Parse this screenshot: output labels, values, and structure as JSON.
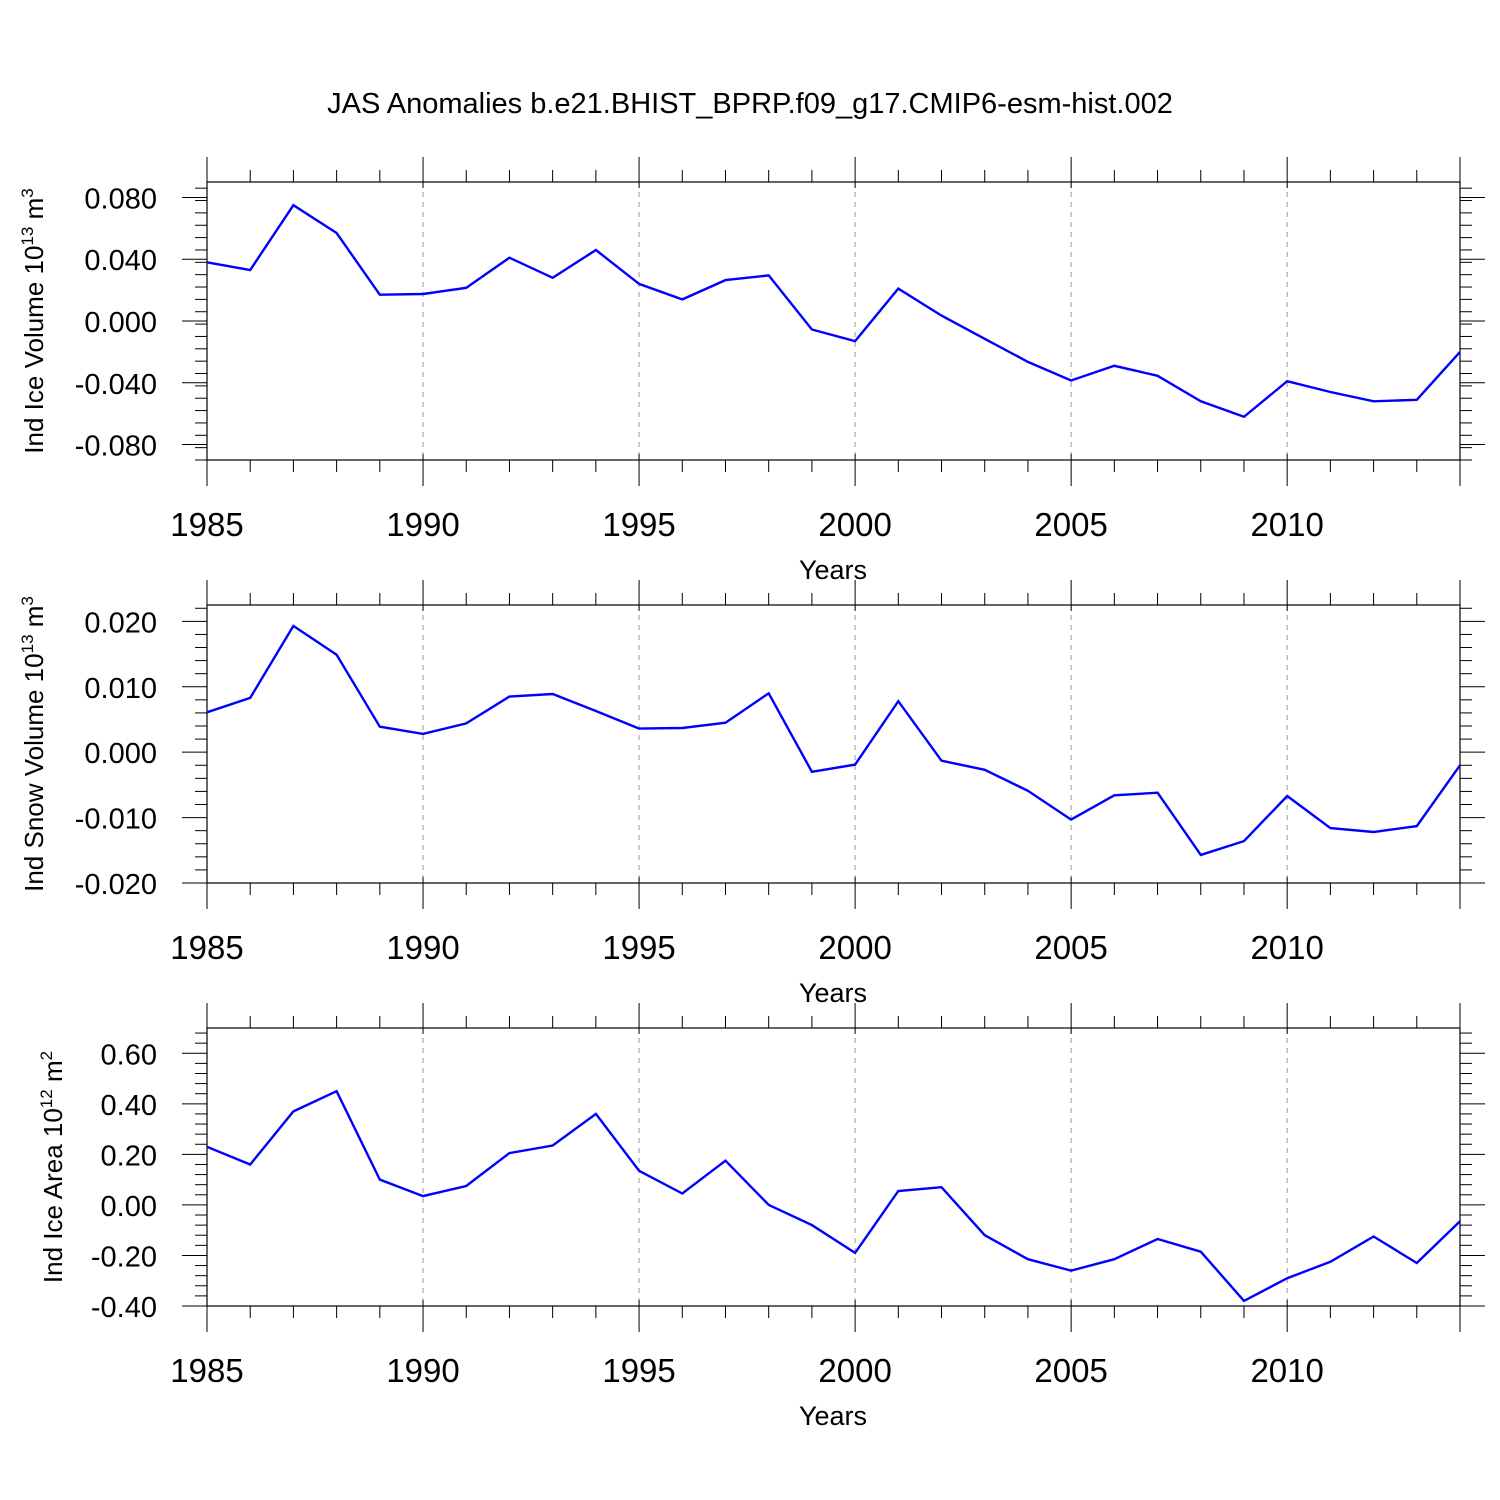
{
  "title": "JAS Anomalies b.e21.BHIST_BPRP.f09_g17.CMIP6-esm-hist.002",
  "colors": {
    "line": "#0000ff",
    "axis": "#000000",
    "grid": "#999999"
  },
  "chart_data": [
    {
      "type": "line",
      "title": "",
      "xlabel": "Years",
      "ylabel": {
        "text": "Ind Ice Volume 10",
        "sup": "13",
        "unit": " m",
        "unit_sup": "3"
      },
      "xlim": [
        1985,
        2014
      ],
      "ylim": [
        -0.09,
        0.09
      ],
      "xticks": [
        1985,
        1990,
        1995,
        2000,
        2005,
        2010
      ],
      "xtick_labels": [
        "1985",
        "1990",
        "1995",
        "2000",
        "2005",
        "2010"
      ],
      "yticks": [
        0.08,
        0.04,
        0.0,
        -0.04,
        -0.08
      ],
      "ytick_labels": [
        "0.080",
        "0.040",
        "0.000",
        "-0.040",
        "-0.080"
      ],
      "grid": "vertical dashed at major x ticks",
      "series": [
        {
          "x": [
            1985,
            1986,
            1987,
            1988,
            1989,
            1990,
            1991,
            1992,
            1993,
            1994,
            1995,
            1996,
            1997,
            1998,
            1999,
            2000,
            2001,
            2002,
            2003,
            2004,
            2005,
            2006,
            2007,
            2008,
            2009,
            2010,
            2011,
            2012,
            2013,
            2014
          ],
          "values": [
            0.038,
            0.033,
            0.075,
            0.057,
            0.017,
            0.0175,
            0.0215,
            0.041,
            0.028,
            0.046,
            0.024,
            0.014,
            0.0265,
            0.0295,
            -0.0055,
            -0.013,
            0.021,
            0.0035,
            -0.0115,
            -0.0265,
            -0.0385,
            -0.029,
            -0.0355,
            -0.052,
            -0.062,
            -0.039,
            -0.046,
            -0.052,
            -0.051,
            -0.02
          ]
        }
      ]
    },
    {
      "type": "line",
      "title": "",
      "xlabel": "Years",
      "ylabel": {
        "text": "Ind Snow Volume 10",
        "sup": "13",
        "unit": " m",
        "unit_sup": "3"
      },
      "xlim": [
        1985,
        2014
      ],
      "ylim": [
        -0.02,
        0.0225
      ],
      "xticks": [
        1985,
        1990,
        1995,
        2000,
        2005,
        2010
      ],
      "xtick_labels": [
        "1985",
        "1990",
        "1995",
        "2000",
        "2005",
        "2010"
      ],
      "yticks": [
        0.02,
        0.01,
        0.0,
        -0.01,
        -0.02
      ],
      "ytick_labels": [
        "0.020",
        "0.010",
        "0.000",
        "-0.010",
        "-0.020"
      ],
      "grid": "vertical dashed at major x ticks",
      "series": [
        {
          "x": [
            1985,
            1986,
            1987,
            1988,
            1989,
            1990,
            1991,
            1992,
            1993,
            1994,
            1995,
            1996,
            1997,
            1998,
            1999,
            2000,
            2001,
            2002,
            2003,
            2004,
            2005,
            2006,
            2007,
            2008,
            2009,
            2010,
            2011,
            2012,
            2013,
            2014
          ],
          "values": [
            0.0061,
            0.0083,
            0.0193,
            0.0149,
            0.0039,
            0.0028,
            0.0044,
            0.0085,
            0.0089,
            0.0063,
            0.0036,
            0.0037,
            0.0045,
            0.009,
            -0.003,
            -0.0019,
            0.0078,
            -0.0013,
            -0.0027,
            -0.0059,
            -0.0103,
            -0.0066,
            -0.0062,
            -0.0157,
            -0.0136,
            -0.0067,
            -0.0116,
            -0.0122,
            -0.0113,
            -0.002
          ]
        }
      ]
    },
    {
      "type": "line",
      "title": "",
      "xlabel": "Years",
      "ylabel": {
        "text": "Ind Ice Area 10",
        "sup": "12",
        "unit": " m",
        "unit_sup": "2"
      },
      "xlim": [
        1985,
        2014
      ],
      "ylim": [
        -0.4,
        0.7
      ],
      "xticks": [
        1985,
        1990,
        1995,
        2000,
        2005,
        2010
      ],
      "xtick_labels": [
        "1985",
        "1990",
        "1995",
        "2000",
        "2005",
        "2010"
      ],
      "yticks": [
        0.6,
        0.4,
        0.2,
        0.0,
        -0.2,
        -0.4
      ],
      "ytick_labels": [
        "0.60",
        "0.40",
        "0.20",
        "0.00",
        "-0.20",
        "-0.40"
      ],
      "grid": "vertical dashed at major x ticks",
      "series": [
        {
          "x": [
            1985,
            1986,
            1987,
            1988,
            1989,
            1990,
            1991,
            1992,
            1993,
            1994,
            1995,
            1996,
            1997,
            1998,
            1999,
            2000,
            2001,
            2002,
            2003,
            2004,
            2005,
            2006,
            2007,
            2008,
            2009,
            2010,
            2011,
            2012,
            2013,
            2014
          ],
          "values": [
            0.23,
            0.16,
            0.37,
            0.45,
            0.1,
            0.035,
            0.075,
            0.205,
            0.235,
            0.36,
            0.135,
            0.045,
            0.175,
            0.0,
            -0.08,
            -0.19,
            0.055,
            0.07,
            -0.12,
            -0.215,
            -0.26,
            -0.215,
            -0.135,
            -0.185,
            -0.38,
            -0.29,
            -0.225,
            -0.125,
            -0.23,
            -0.065
          ]
        }
      ]
    }
  ]
}
